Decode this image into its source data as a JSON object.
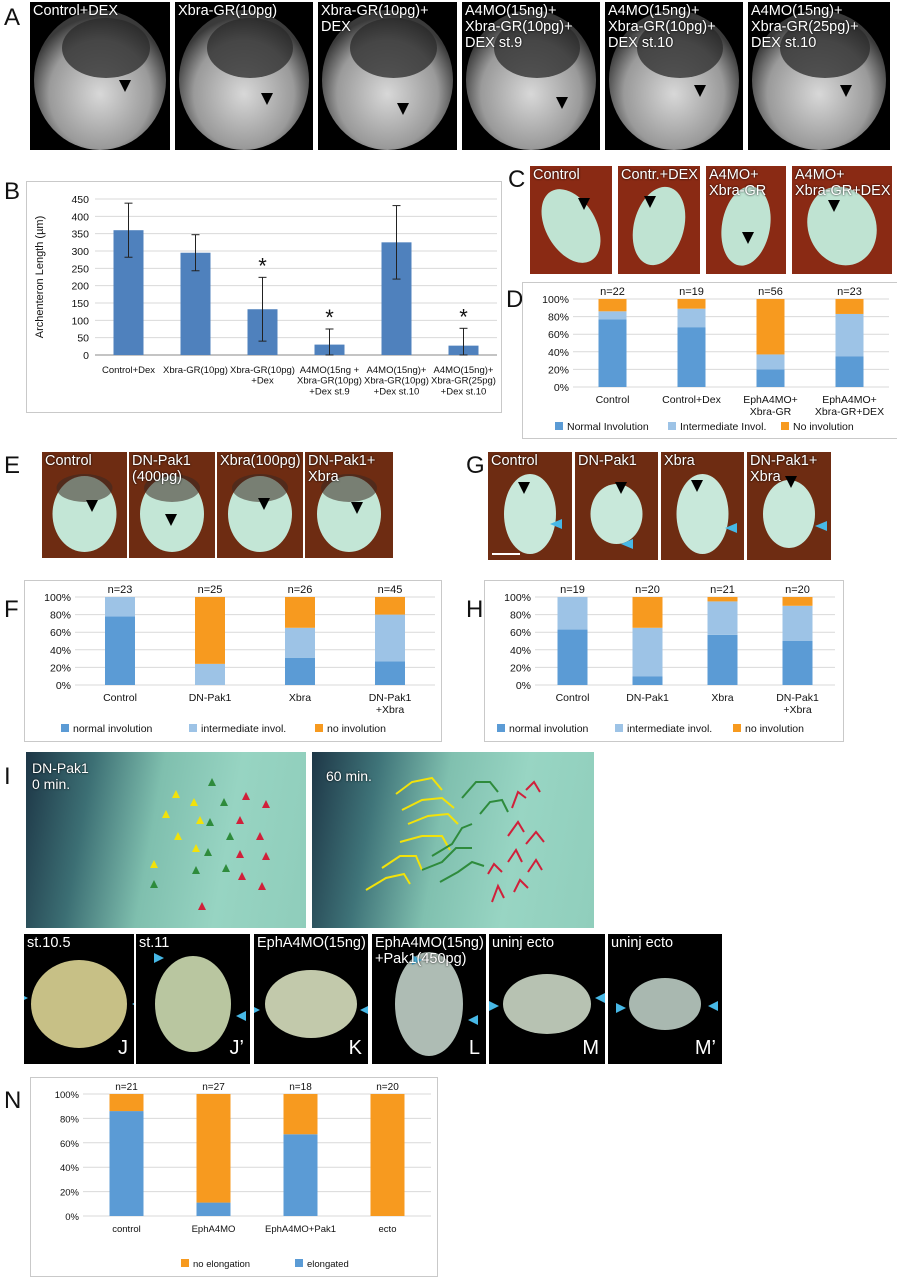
{
  "panels": {
    "A": {
      "letter": "A",
      "images": [
        {
          "label": "Control+DEX"
        },
        {
          "label": "Xbra-GR(10pg)"
        },
        {
          "label": "Xbra-GR(10pg)+\nDEX"
        },
        {
          "label": "A4MO(15ng)+\nXbra-GR(10pg)+\nDEX st.9"
        },
        {
          "label": "A4MO(15ng)+\nXbra-GR(10pg)+\nDEX st.10"
        },
        {
          "label": "A4MO(15ng)+\nXbra-GR(25pg)+\nDEX st.10"
        }
      ]
    },
    "C": {
      "letter": "C",
      "images": [
        {
          "label": "Control"
        },
        {
          "label": "Contr.+DEX"
        },
        {
          "label": "A4MO+\nXbra-GR"
        },
        {
          "label": "A4MO+\nXbra-GR+DEX"
        }
      ]
    },
    "E": {
      "letter": "E",
      "images": [
        {
          "label": "Control"
        },
        {
          "label": "DN-Pak1\n(400pg)"
        },
        {
          "label": "Xbra(100pg)"
        },
        {
          "label": "DN-Pak1+\nXbra"
        }
      ]
    },
    "G": {
      "letter": "G",
      "images": [
        {
          "label": "Control"
        },
        {
          "label": "DN-Pak1"
        },
        {
          "label": "Xbra"
        },
        {
          "label": "DN-Pak1+\nXbra"
        }
      ]
    },
    "I": {
      "letter": "I",
      "left_label": "DN-Pak1\n0 min.",
      "right_label": "60 min."
    },
    "J_to_M": [
      {
        "label": "st.10.5",
        "letter": "J"
      },
      {
        "label": "st.11",
        "letter": "J’"
      },
      {
        "label": "EphA4MO(15ng)",
        "letter": "K"
      },
      {
        "label": "EphA4MO(15ng)\n+Pak1(450pg)",
        "letter": "L"
      },
      {
        "label": "uninj ecto",
        "letter": "M"
      },
      {
        "label": "uninj ecto",
        "letter": "M’"
      }
    ],
    "letters": {
      "B": "B",
      "D": "D",
      "F": "F",
      "H": "H",
      "N": "N"
    }
  },
  "colors": {
    "bar_blue": "#4f81bd",
    "normal": "#5b9bd5",
    "intermediate": "#9dc3e6",
    "none": "#f79a1f",
    "yellow_track": "#f2e20a",
    "green_track": "#2e8b3c",
    "red_track": "#d0203a",
    "cyan_arrow": "#47b8e6"
  },
  "chart_data": [
    {
      "id": "B",
      "type": "bar",
      "ylabel": "Archenteron Length (µm)",
      "ylim": [
        0,
        450
      ],
      "yticks": [
        0,
        50,
        100,
        150,
        200,
        250,
        300,
        350,
        400,
        450
      ],
      "grid": true,
      "categories": [
        "Control+Dex",
        "Xbra-GR(10pg)",
        "Xbra-GR(10pg)\n+Dex",
        "A4MO(15ng +\nXbra-GR(10pg)\n+Dex st.9",
        "A4MO(15ng)+\nXbra-GR(10pg)\n+Dex st.10",
        "A4MO(15ng)+\nXbra-GR(25pg)\n+Dex st.10"
      ],
      "values": [
        360,
        295,
        132,
        30,
        325,
        27
      ],
      "errors": [
        78,
        52,
        92,
        45,
        106,
        50
      ],
      "significance": [
        "",
        "",
        "*",
        "*",
        "",
        "*"
      ]
    },
    {
      "id": "D",
      "type": "bar",
      "stacked": true,
      "yticks": [
        "0%",
        "20%",
        "40%",
        "60%",
        "80%",
        "100%"
      ],
      "categories": [
        "Control",
        "Control+Dex",
        "EphA4MO+\nXbra-GR",
        "EphA4MO+\nXbra-GR+DEX"
      ],
      "n_labels": [
        "n=22",
        "n=19",
        "n=56",
        "n=23"
      ],
      "series": [
        {
          "name": "Normal Involution",
          "values": [
            77,
            68,
            20,
            35
          ]
        },
        {
          "name": "Intermediate Invol.",
          "values": [
            9,
            21,
            17,
            48
          ]
        },
        {
          "name": "No involution",
          "values": [
            14,
            11,
            63,
            17
          ]
        }
      ],
      "legend": "bottom"
    },
    {
      "id": "F",
      "type": "bar",
      "stacked": true,
      "yticks": [
        "0%",
        "20%",
        "40%",
        "60%",
        "80%",
        "100%"
      ],
      "categories": [
        "Control",
        "DN-Pak1",
        "Xbra",
        "DN-Pak1\n+Xbra"
      ],
      "n_labels": [
        "n=23",
        "n=25",
        "n=26",
        "n=45"
      ],
      "series": [
        {
          "name": "normal involution",
          "values": [
            78,
            0,
            31,
            27
          ]
        },
        {
          "name": "intermediate invol.",
          "values": [
            22,
            24,
            34,
            53
          ]
        },
        {
          "name": "no involution",
          "values": [
            0,
            76,
            35,
            20
          ]
        }
      ],
      "legend": "bottom"
    },
    {
      "id": "H",
      "type": "bar",
      "stacked": true,
      "yticks": [
        "0%",
        "20%",
        "40%",
        "60%",
        "80%",
        "100%"
      ],
      "categories": [
        "Control",
        "DN-Pak1",
        "Xbra",
        "DN-Pak1\n+Xbra"
      ],
      "n_labels": [
        "n=19",
        "n=20",
        "n=21",
        "n=20"
      ],
      "series": [
        {
          "name": "normal involution",
          "values": [
            63,
            10,
            57,
            50
          ]
        },
        {
          "name": "intermediate invol.",
          "values": [
            37,
            55,
            38,
            40
          ]
        },
        {
          "name": "no involution",
          "values": [
            0,
            35,
            5,
            10
          ]
        }
      ],
      "legend": "bottom"
    },
    {
      "id": "N",
      "type": "bar",
      "stacked": true,
      "yticks": [
        "0%",
        "20%",
        "40%",
        "60%",
        "80%",
        "100%"
      ],
      "categories": [
        "control",
        "EphA4MO",
        "EphA4MO+Pak1",
        "ecto"
      ],
      "n_labels": [
        "n=21",
        "n=27",
        "n=18",
        "n=20"
      ],
      "series": [
        {
          "name": "elongated",
          "values": [
            86,
            11,
            67,
            0
          ]
        },
        {
          "name": "no elongation",
          "values": [
            14,
            89,
            33,
            100
          ]
        }
      ],
      "legend_order": [
        "no elongation",
        "elongated"
      ],
      "legend": "bottom"
    }
  ]
}
